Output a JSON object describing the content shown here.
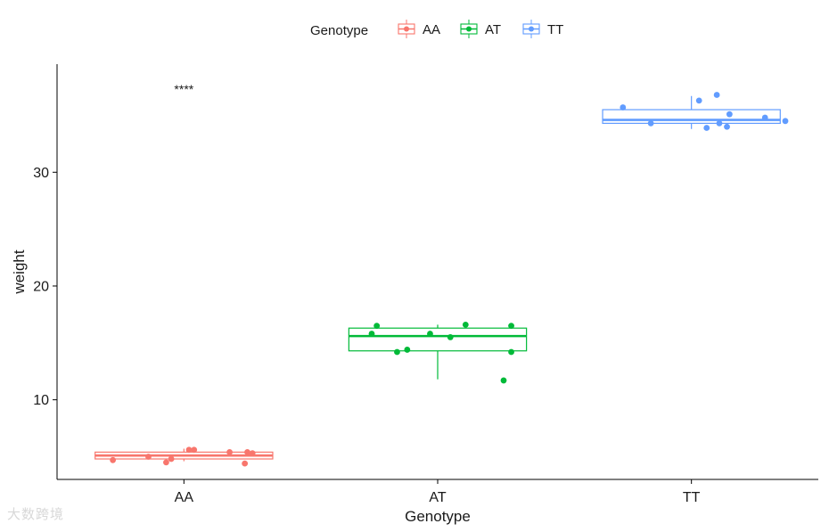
{
  "chart_data": {
    "type": "box",
    "xlabel": "Genotype",
    "ylabel": "weight",
    "categories": [
      "AA",
      "AT",
      "TT"
    ],
    "ylim": [
      3.0,
      39.5
    ],
    "yticks": [
      10,
      20,
      30
    ],
    "grid": false,
    "legend": {
      "title": "Genotype",
      "position": "top",
      "entries": [
        "AA",
        "AT",
        "TT"
      ]
    },
    "annotation": {
      "text": "****",
      "category": "AA",
      "y": 37.3
    },
    "colors": {
      "AA": "#F8766D",
      "AT": "#00BA38",
      "TT": "#619CFF"
    },
    "series": [
      {
        "name": "AA",
        "box": {
          "q1": 4.8,
          "median": 5.1,
          "q3": 5.4,
          "whisker_low": 4.6,
          "whisker_high": 5.7
        },
        "points": [
          {
            "x": -0.28,
            "y": 4.7
          },
          {
            "x": -0.14,
            "y": 5.0
          },
          {
            "x": -0.05,
            "y": 4.8
          },
          {
            "x": -0.07,
            "y": 4.5
          },
          {
            "x": 0.02,
            "y": 5.6
          },
          {
            "x": 0.04,
            "y": 5.6
          },
          {
            "x": 0.18,
            "y": 5.4
          },
          {
            "x": 0.25,
            "y": 5.4
          },
          {
            "x": 0.27,
            "y": 5.3
          },
          {
            "x": 0.24,
            "y": 4.4
          }
        ]
      },
      {
        "name": "AT",
        "box": {
          "q1": 14.3,
          "median": 15.6,
          "q3": 16.3,
          "whisker_low": 11.8,
          "whisker_high": 16.6
        },
        "points": [
          {
            "x": -0.26,
            "y": 15.8
          },
          {
            "x": -0.24,
            "y": 16.5
          },
          {
            "x": -0.16,
            "y": 14.2
          },
          {
            "x": -0.12,
            "y": 14.4
          },
          {
            "x": -0.03,
            "y": 15.8
          },
          {
            "x": 0.05,
            "y": 15.5
          },
          {
            "x": 0.11,
            "y": 16.6
          },
          {
            "x": 0.29,
            "y": 16.5
          },
          {
            "x": 0.29,
            "y": 14.2
          },
          {
            "x": 0.26,
            "y": 11.7
          }
        ]
      },
      {
        "name": "TT",
        "box": {
          "q1": 34.3,
          "median": 34.6,
          "q3": 35.5,
          "whisker_low": 33.8,
          "whisker_high": 36.7
        },
        "points": [
          {
            "x": -0.27,
            "y": 35.7
          },
          {
            "x": -0.16,
            "y": 34.3
          },
          {
            "x": 0.03,
            "y": 36.3
          },
          {
            "x": 0.1,
            "y": 36.8
          },
          {
            "x": 0.15,
            "y": 35.1
          },
          {
            "x": 0.06,
            "y": 33.9
          },
          {
            "x": 0.11,
            "y": 34.3
          },
          {
            "x": 0.14,
            "y": 34.0
          },
          {
            "x": 0.29,
            "y": 34.8
          },
          {
            "x": 0.37,
            "y": 34.5
          }
        ]
      }
    ]
  },
  "watermark": "大数跨境"
}
